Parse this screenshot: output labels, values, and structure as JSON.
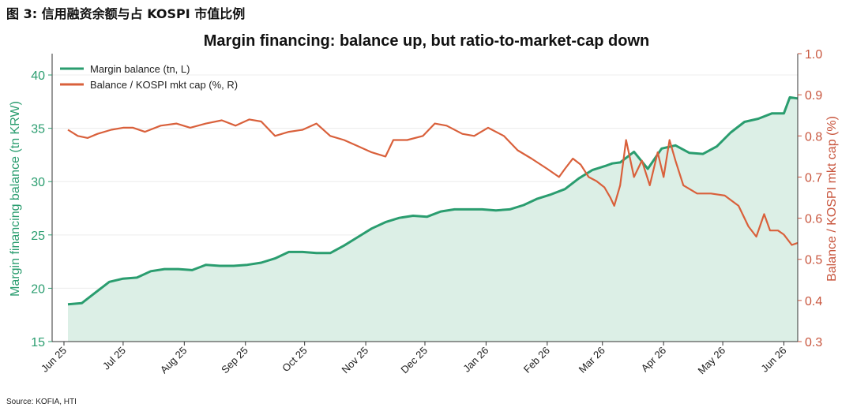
{
  "figure": {
    "caption": "图 3:  信用融资余额与占 KOSPI 市值比例",
    "source": "Source: KOFIA, HTI"
  },
  "chart_data": {
    "type": "line",
    "title": "Margin financing: balance up, but ratio-to-market-cap down",
    "xlabel": "",
    "ylabel_left": "Margin financing balance (tn KRW)",
    "ylabel_right": "Balance / KOSPI mkt cap (%)",
    "x_ticks": [
      "Jun 25",
      "Jul 25",
      "Aug 25",
      "Sep 25",
      "Oct 25",
      "Nov 25",
      "Dec 25",
      "Jan 26",
      "Feb 26",
      "Mar 26",
      "Apr 26",
      "May 26",
      "Jun 26"
    ],
    "x_range": [
      "2025-05-26",
      "2026-06-08"
    ],
    "ylim_left": [
      15,
      42
    ],
    "yticks_left": [
      "15",
      "20",
      "25",
      "30",
      "35",
      "40"
    ],
    "ylim_right": [
      0.3,
      1.0
    ],
    "yticks_right": [
      "0.3",
      "0.4",
      "0.5",
      "0.6",
      "0.7",
      "0.8",
      "0.9",
      "1.0"
    ],
    "grid": "horizontal",
    "legend_position": "upper left",
    "colors": {
      "balance": "#2a9d6f",
      "ratio": "#d9603b",
      "fill": "#dcefe6",
      "axis_left": "#2a9d6f",
      "axis_right": "#c8553d"
    },
    "series": [
      {
        "name": "Margin balance (tn, L)",
        "axis": "left",
        "fill": true,
        "x": [
          "2025-06-03",
          "2025-06-10",
          "2025-06-17",
          "2025-06-24",
          "2025-07-01",
          "2025-07-08",
          "2025-07-15",
          "2025-07-22",
          "2025-07-29",
          "2025-08-05",
          "2025-08-12",
          "2025-08-19",
          "2025-08-26",
          "2025-09-02",
          "2025-09-09",
          "2025-09-16",
          "2025-09-23",
          "2025-09-30",
          "2025-10-07",
          "2025-10-14",
          "2025-10-21",
          "2025-10-28",
          "2025-11-04",
          "2025-11-11",
          "2025-11-18",
          "2025-11-25",
          "2025-12-02",
          "2025-12-09",
          "2025-12-16",
          "2025-12-23",
          "2025-12-30",
          "2026-01-06",
          "2026-01-13",
          "2026-01-20",
          "2026-01-27",
          "2026-02-03",
          "2026-02-10",
          "2026-02-17",
          "2026-02-24",
          "2026-03-03",
          "2026-03-06",
          "2026-03-10",
          "2026-03-17",
          "2026-03-24",
          "2026-03-31",
          "2026-04-07",
          "2026-04-14",
          "2026-04-21",
          "2026-04-28",
          "2026-05-05",
          "2026-05-12",
          "2026-05-19",
          "2026-05-26",
          "2026-06-01",
          "2026-06-04",
          "2026-06-08"
        ],
        "values": [
          18.5,
          18.6,
          19.6,
          20.6,
          20.9,
          21.0,
          21.6,
          21.8,
          21.8,
          21.7,
          22.2,
          22.1,
          22.1,
          22.2,
          22.4,
          22.8,
          23.4,
          23.4,
          23.3,
          23.3,
          24.0,
          24.8,
          25.6,
          26.2,
          26.6,
          26.8,
          26.7,
          27.2,
          27.4,
          27.4,
          27.4,
          27.3,
          27.4,
          27.8,
          28.4,
          28.8,
          29.3,
          30.3,
          31.1,
          31.5,
          31.7,
          31.8,
          32.8,
          31.2,
          33.1,
          33.4,
          32.7,
          32.6,
          33.3,
          34.6,
          35.6,
          35.9,
          36.4,
          36.4,
          37.9,
          37.8
        ]
      },
      {
        "name": "Balance / KOSPI mkt cap (%, R)",
        "axis": "right",
        "fill": false,
        "x": [
          "2025-06-03",
          "2025-06-08",
          "2025-06-13",
          "2025-06-18",
          "2025-06-25",
          "2025-07-01",
          "2025-07-06",
          "2025-07-12",
          "2025-07-20",
          "2025-07-28",
          "2025-08-04",
          "2025-08-12",
          "2025-08-20",
          "2025-08-27",
          "2025-09-03",
          "2025-09-09",
          "2025-09-16",
          "2025-09-23",
          "2025-09-30",
          "2025-10-07",
          "2025-10-14",
          "2025-10-21",
          "2025-10-28",
          "2025-11-04",
          "2025-11-11",
          "2025-11-15",
          "2025-11-22",
          "2025-11-30",
          "2025-12-06",
          "2025-12-12",
          "2025-12-20",
          "2025-12-26",
          "2026-01-02",
          "2026-01-10",
          "2026-01-17",
          "2026-01-24",
          "2026-02-01",
          "2026-02-07",
          "2026-02-10",
          "2026-02-14",
          "2026-02-18",
          "2026-02-22",
          "2026-02-26",
          "2026-03-02",
          "2026-03-05",
          "2026-03-07",
          "2026-03-10",
          "2026-03-13",
          "2026-03-17",
          "2026-03-21",
          "2026-03-25",
          "2026-03-29",
          "2026-04-01",
          "2026-04-04",
          "2026-04-07",
          "2026-04-11",
          "2026-04-18",
          "2026-04-25",
          "2026-05-02",
          "2026-05-09",
          "2026-05-14",
          "2026-05-18",
          "2026-05-22",
          "2026-05-25",
          "2026-05-29",
          "2026-06-01",
          "2026-06-05",
          "2026-06-08"
        ],
        "values": [
          0.815,
          0.8,
          0.795,
          0.805,
          0.815,
          0.82,
          0.82,
          0.81,
          0.825,
          0.83,
          0.82,
          0.83,
          0.838,
          0.825,
          0.84,
          0.835,
          0.8,
          0.81,
          0.815,
          0.83,
          0.8,
          0.79,
          0.775,
          0.76,
          0.75,
          0.79,
          0.79,
          0.8,
          0.83,
          0.825,
          0.805,
          0.8,
          0.82,
          0.8,
          0.765,
          0.745,
          0.72,
          0.7,
          0.72,
          0.745,
          0.73,
          0.7,
          0.69,
          0.675,
          0.65,
          0.63,
          0.68,
          0.79,
          0.7,
          0.74,
          0.68,
          0.76,
          0.7,
          0.79,
          0.74,
          0.68,
          0.66,
          0.66,
          0.655,
          0.63,
          0.58,
          0.555,
          0.61,
          0.57,
          0.57,
          0.56,
          0.535,
          0.54
        ]
      }
    ]
  }
}
